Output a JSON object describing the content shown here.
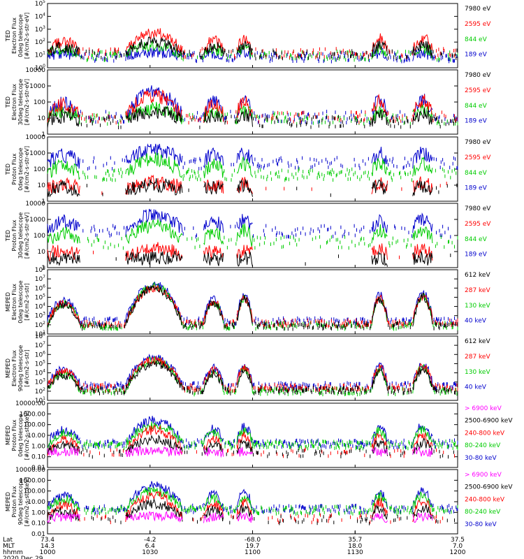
{
  "chart_data": {
    "type": "line",
    "date_label": "2020 Dec 29",
    "x_axis": {
      "row_labels": [
        "Lat",
        "MLT",
        "hhmm"
      ],
      "ticks": [
        {
          "lat": "73.4",
          "mlt": "14.3",
          "hhmm": "1000"
        },
        {
          "lat": "-4.2",
          "mlt": "6.4",
          "hhmm": "1030"
        },
        {
          "lat": "-68.0",
          "mlt": "19.7",
          "hhmm": "1100"
        },
        {
          "lat": "35.7",
          "mlt": "18.0",
          "hhmm": "1130"
        },
        {
          "lat": "37.5",
          "mlt": "7.0",
          "hhmm": "1200"
        }
      ]
    },
    "panels": [
      {
        "id": "ted-e-0",
        "ylabel": [
          "TED",
          "Electron Flux",
          "0deg telescope",
          "[#/cm2-s-str-eV]"
        ],
        "yscale": "log",
        "ylim_exp": [
          0,
          5
        ],
        "tick_style": "pow",
        "series": [
          {
            "name": "7980 eV",
            "color": "#000000",
            "peak": 2.0,
            "sparse": 0.6,
            "base": 1.1
          },
          {
            "name": "2595 eV",
            "color": "#ff0000",
            "peak": 2.7,
            "sparse": 0.6,
            "base": 1.2
          },
          {
            "name": "844 eV",
            "color": "#00cc00",
            "peak": 1.7,
            "sparse": 0.7,
            "base": 1.0
          },
          {
            "name": "189 eV",
            "color": "#0000cc",
            "peak": 1.2,
            "sparse": 0.9,
            "base": 0.9
          }
        ]
      },
      {
        "id": "ted-e-30",
        "ylabel": [
          "TED",
          "Electron Flux",
          "30deg telescope",
          "[#/cm2-s-str-eV]"
        ],
        "yscale": "log",
        "ylim_exp": [
          0,
          4
        ],
        "tick_style": "num",
        "series": [
          {
            "name": "7980 eV",
            "color": "#000000",
            "peak": 1.4,
            "sparse": 0.6,
            "base": 0.8
          },
          {
            "name": "2595 eV",
            "color": "#ff0000",
            "peak": 2.4,
            "sparse": 0.6,
            "base": 1.1
          },
          {
            "name": "844 eV",
            "color": "#00cc00",
            "peak": 1.6,
            "sparse": 0.7,
            "base": 1.0
          },
          {
            "name": "189 eV",
            "color": "#0000cc",
            "peak": 2.6,
            "sparse": 0.7,
            "base": 1.1
          }
        ]
      },
      {
        "id": "ted-p-0",
        "ylabel": [
          "TED",
          "Proton Flux",
          "0deg telescope",
          "[#/cm2-s-str-eV]"
        ],
        "yscale": "log",
        "ylim_exp": [
          0,
          4
        ],
        "tick_style": "num",
        "series": [
          {
            "name": "7980 eV",
            "color": "#000000",
            "peak": 1.0,
            "sparse": 0.05,
            "base": 0.7
          },
          {
            "name": "2595 eV",
            "color": "#ff0000",
            "peak": 1.2,
            "sparse": 0.05,
            "base": 0.8
          },
          {
            "name": "844 eV",
            "color": "#00cc00",
            "peak": 2.6,
            "sparse": 0.95,
            "base": 1.7
          },
          {
            "name": "189 eV",
            "color": "#0000cc",
            "peak": 3.2,
            "sparse": 0.7,
            "base": 2.4
          }
        ]
      },
      {
        "id": "ted-p-30",
        "ylabel": [
          "TED",
          "Proton Flux",
          "30deg telescope",
          "[#/cm2-s-str-eV]"
        ],
        "yscale": "log",
        "ylim_exp": [
          0,
          4
        ],
        "tick_style": "num",
        "series": [
          {
            "name": "7980 eV",
            "color": "#000000",
            "peak": 0.6,
            "sparse": 0.02,
            "base": 0.5
          },
          {
            "name": "2595 eV",
            "color": "#ff0000",
            "peak": 1.2,
            "sparse": 0.02,
            "base": 0.8
          },
          {
            "name": "844 eV",
            "color": "#00cc00",
            "peak": 2.6,
            "sparse": 0.6,
            "base": 1.6
          },
          {
            "name": "189 eV",
            "color": "#0000cc",
            "peak": 3.3,
            "sparse": 0.5,
            "base": 2.3
          }
        ]
      },
      {
        "id": "meped-e-0",
        "ylabel": [
          "MEPED",
          "Electron Flux",
          "0deg telescope",
          "[#/cm2-s-str]"
        ],
        "yscale": "log",
        "ylim_exp": [
          1,
          8
        ],
        "tick_style": "pow",
        "series": [
          {
            "name": "612 keV",
            "color": "#000000",
            "peak": 6.0,
            "sparse": 1.0,
            "base": 2.0
          },
          {
            "name": "287 keV",
            "color": "#ff0000",
            "peak": 6.0,
            "sparse": 1.0,
            "base": 2.3
          },
          {
            "name": "130 keV",
            "color": "#00cc00",
            "peak": 6.2,
            "sparse": 1.0,
            "base": 2.0
          },
          {
            "name": "40 keV",
            "color": "#0000cc",
            "peak": 6.4,
            "sparse": 1.0,
            "base": 2.5
          }
        ]
      },
      {
        "id": "meped-e-90",
        "ylabel": [
          "MEPED",
          "Electron Flux",
          "90deg telescope",
          "[#/cm2-s-str]"
        ],
        "yscale": "log",
        "ylim_exp": [
          1,
          8
        ],
        "tick_style": "pow",
        "series": [
          {
            "name": "612 keV",
            "color": "#000000",
            "peak": 5.0,
            "sparse": 1.0,
            "base": 2.2
          },
          {
            "name": "287 keV",
            "color": "#ff0000",
            "peak": 5.4,
            "sparse": 1.0,
            "base": 2.5
          },
          {
            "name": "130 keV",
            "color": "#00cc00",
            "peak": 5.4,
            "sparse": 1.0,
            "base": 2.1
          },
          {
            "name": "40 keV",
            "color": "#0000cc",
            "peak": 5.7,
            "sparse": 1.0,
            "base": 2.7
          }
        ]
      },
      {
        "id": "meped-p-0",
        "ylabel": [
          "MEPED",
          "Proton Flux",
          "0deg telescope",
          "[#/cm2-s-str-keV]"
        ],
        "yscale": "log",
        "ylim_exp": [
          -2,
          4
        ],
        "tick_style": "dec",
        "series": [
          {
            "name": "> 6900 keV",
            "color": "#ff00ff",
            "peak": -0.5,
            "sparse": 0.0,
            "base": -0.6
          },
          {
            "name": "2500-6900 keV",
            "color": "#000000",
            "peak": 0.6,
            "sparse": 0.3,
            "base": -0.6
          },
          {
            "name": "240-800 keV",
            "color": "#ff0000",
            "peak": 1.5,
            "sparse": 0.3,
            "base": -0.5
          },
          {
            "name": "80-240 keV",
            "color": "#00cc00",
            "peak": 1.9,
            "sparse": 1.0,
            "base": 0.2
          },
          {
            "name": "30-80 keV",
            "color": "#0000cc",
            "peak": 2.4,
            "sparse": 1.0,
            "base": 0.3
          }
        ]
      },
      {
        "id": "meped-p-90",
        "ylabel": [
          "MEPED",
          "Proton Flux",
          "90deg telescope",
          "[#/cm2-s-str-keV]"
        ],
        "yscale": "log",
        "ylim_exp": [
          -2,
          4
        ],
        "tick_style": "dec",
        "series": [
          {
            "name": "> 6900 keV",
            "color": "#ff00ff",
            "peak": -0.3,
            "sparse": 0.0,
            "base": -0.6
          },
          {
            "name": "2500-6900 keV",
            "color": "#000000",
            "peak": 0.8,
            "sparse": 0.3,
            "base": -0.6
          },
          {
            "name": "240-800 keV",
            "color": "#ff0000",
            "peak": 1.6,
            "sparse": 0.3,
            "base": -0.5
          },
          {
            "name": "80-240 keV",
            "color": "#00cc00",
            "peak": 2.0,
            "sparse": 1.0,
            "base": 0.3
          },
          {
            "name": "30-80 keV",
            "color": "#0000cc",
            "peak": 2.5,
            "sparse": 1.0,
            "base": 0.4
          }
        ]
      }
    ]
  }
}
